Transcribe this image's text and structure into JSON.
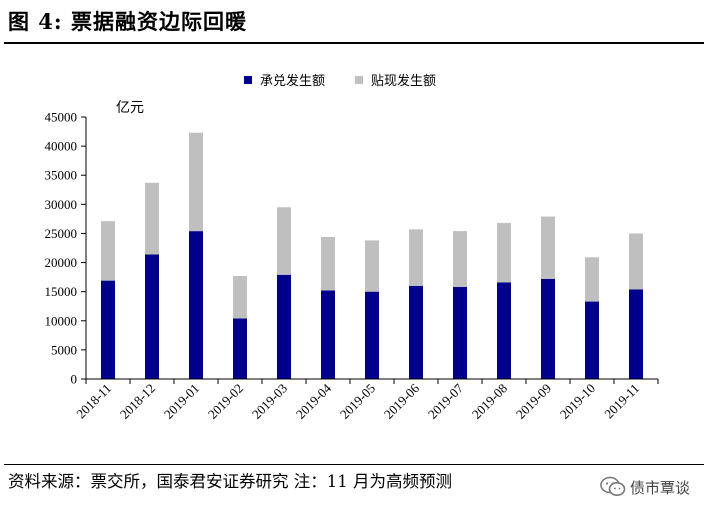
{
  "figure": {
    "title": "图 4:  票据融资边际回暖",
    "source": "资料来源：票交所，国泰君安证券研究  注：11 月为高频预测",
    "watermark": "债市覃谈"
  },
  "chart_data": {
    "type": "bar",
    "stacked": true,
    "unit": "亿元",
    "categories": [
      "2018-11",
      "2018-12",
      "2019-01",
      "2019-02",
      "2019-03",
      "2019-04",
      "2019-05",
      "2019-06",
      "2019-07",
      "2019-08",
      "2019-09",
      "2019-10",
      "2019-11"
    ],
    "series": [
      {
        "name": "承兑发生额",
        "color": "#00008B",
        "values": [
          16900,
          21400,
          25400,
          10400,
          17900,
          15200,
          15000,
          16000,
          15800,
          16600,
          17200,
          13300,
          15400
        ]
      },
      {
        "name": "贴现发生额",
        "color": "#BFBFBF",
        "values": [
          10200,
          12300,
          16900,
          7300,
          11600,
          9200,
          8800,
          9700,
          9600,
          10200,
          10700,
          7600,
          9600
        ]
      }
    ],
    "ylim": [
      0,
      45000
    ],
    "yticks": [
      0,
      5000,
      10000,
      15000,
      20000,
      25000,
      30000,
      35000,
      40000,
      45000
    ],
    "legend": "top-center",
    "grid": false
  }
}
